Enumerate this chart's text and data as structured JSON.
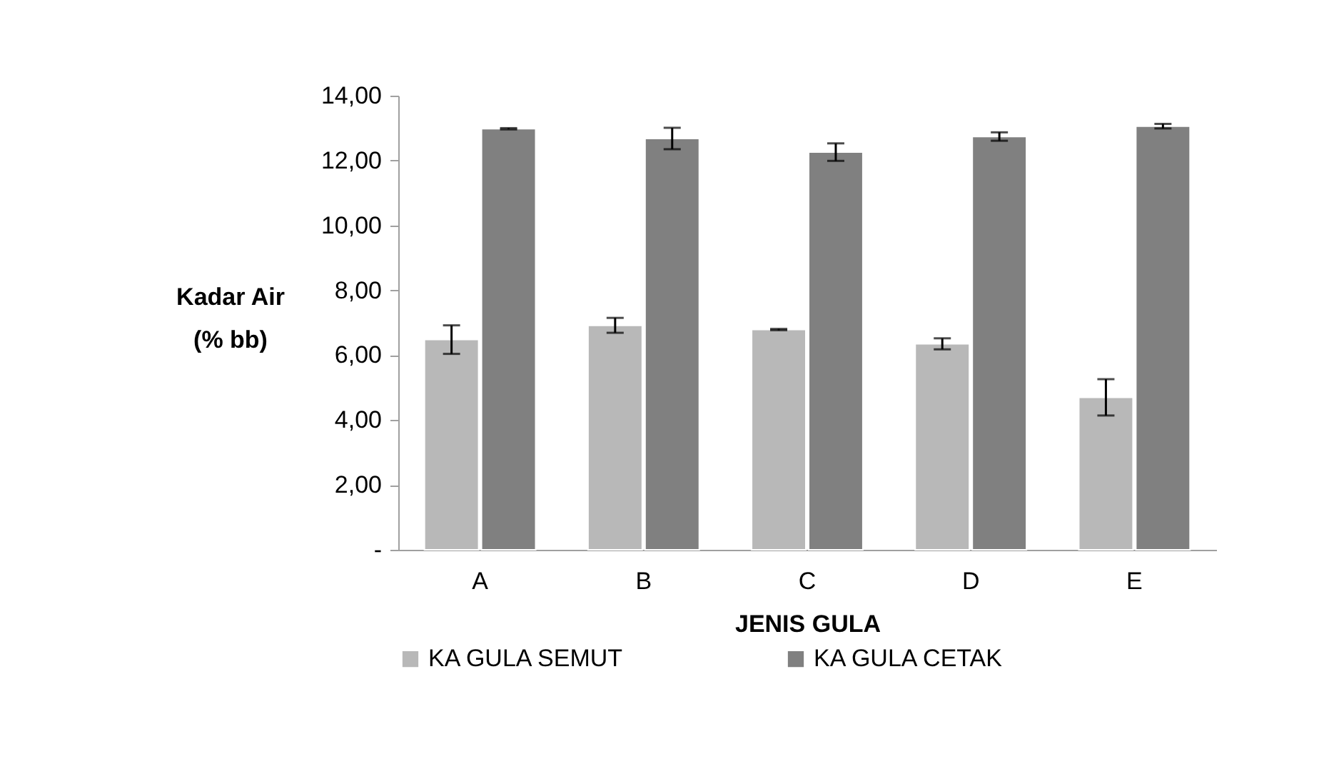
{
  "chart_data": {
    "type": "bar",
    "xlabel": "JENIS GULA",
    "ylabel": "Kadar Air\n(% bb)",
    "categories": [
      "A",
      "B",
      "C",
      "D",
      "E"
    ],
    "series": [
      {
        "name": "KA GULA SEMUT",
        "color": "#b8b8b8",
        "values": [
          6.48,
          6.92,
          6.79,
          6.35,
          4.7
        ],
        "errors": [
          0.44,
          0.23,
          0.02,
          0.17,
          0.56
        ]
      },
      {
        "name": "KA GULA CETAK",
        "color": "#808080",
        "values": [
          12.98,
          12.68,
          12.26,
          12.74,
          13.06
        ],
        "errors": [
          0.02,
          0.33,
          0.27,
          0.13,
          0.07
        ]
      }
    ],
    "ylim": [
      0,
      14
    ],
    "yticks": [
      {
        "value": 0,
        "label": "-"
      },
      {
        "value": 2,
        "label": "2,00"
      },
      {
        "value": 4,
        "label": "4,00"
      },
      {
        "value": 6,
        "label": "6,00"
      },
      {
        "value": 8,
        "label": "8,00"
      },
      {
        "value": 10,
        "label": "10,00"
      },
      {
        "value": 12,
        "label": "12,00"
      },
      {
        "value": 14,
        "label": "14,00"
      }
    ],
    "grid": false,
    "legend": "bottom"
  }
}
